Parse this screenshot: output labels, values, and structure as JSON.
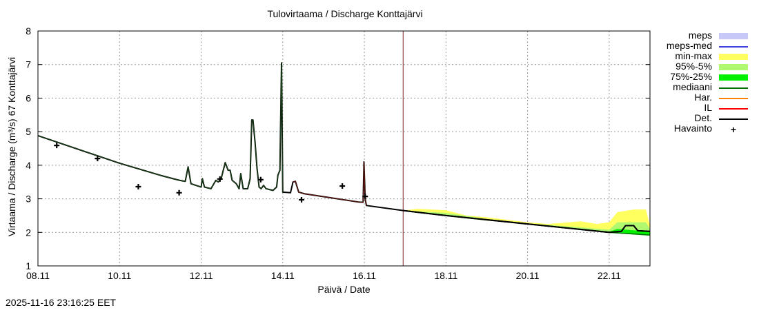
{
  "chart_data": {
    "type": "line",
    "title": "Tulovirtaama / Discharge  Konttajärvi",
    "xlabel": "Päivä / Date",
    "ylabel": "Virtaama / Discharge (m³/s)  67 Konttajärvi",
    "ylim": [
      1,
      8
    ],
    "xlim_days_from_0811": [
      0,
      15
    ],
    "y_ticks": [
      "1",
      "2",
      "3",
      "4",
      "5",
      "6",
      "7",
      "8"
    ],
    "x_ticks": [
      "08.11",
      "10.11",
      "12.11",
      "14.11",
      "16.11",
      "18.11",
      "20.11",
      "22.11"
    ],
    "grid": true,
    "forecast_start_day": 8.95,
    "legend": [
      {
        "label": "meps",
        "color": "#c8c8f8",
        "kind": "band"
      },
      {
        "label": "meps-med",
        "color": "#4040e0",
        "kind": "line"
      },
      {
        "label": "min-max",
        "color": "#ffff60",
        "kind": "band"
      },
      {
        "label": "95%-5%",
        "color": "#b0f870",
        "kind": "band"
      },
      {
        "label": "75%-25%",
        "color": "#00f000",
        "kind": "band"
      },
      {
        "label": "mediaani",
        "color": "#007000",
        "kind": "line"
      },
      {
        "label": "Har.",
        "color": "#ff8000",
        "kind": "line"
      },
      {
        "label": "IL",
        "color": "#ff0000",
        "kind": "line"
      },
      {
        "label": "Det.",
        "color": "#000000",
        "kind": "line"
      },
      {
        "label": "Havainto",
        "color": "#000000",
        "kind": "marker"
      }
    ],
    "det": [
      [
        0,
        4.88
      ],
      [
        2,
        4.06
      ],
      [
        3,
        3.7
      ],
      [
        3.47,
        3.55
      ],
      [
        3.61,
        3.52
      ],
      [
        3.68,
        3.95
      ],
      [
        3.75,
        3.45
      ],
      [
        4.0,
        3.35
      ],
      [
        4.03,
        3.6
      ],
      [
        4.08,
        3.35
      ],
      [
        4.24,
        3.3
      ],
      [
        4.36,
        3.55
      ],
      [
        4.42,
        3.5
      ],
      [
        4.49,
        3.6
      ],
      [
        4.59,
        4.08
      ],
      [
        4.66,
        3.85
      ],
      [
        4.71,
        3.85
      ],
      [
        4.76,
        3.55
      ],
      [
        4.86,
        3.45
      ],
      [
        4.93,
        3.3
      ],
      [
        4.97,
        3.75
      ],
      [
        5.03,
        3.3
      ],
      [
        5.14,
        3.3
      ],
      [
        5.2,
        3.6
      ],
      [
        5.24,
        5.35
      ],
      [
        5.27,
        5.35
      ],
      [
        5.32,
        4.7
      ],
      [
        5.37,
        3.9
      ],
      [
        5.42,
        3.35
      ],
      [
        5.47,
        3.3
      ],
      [
        5.53,
        3.4
      ],
      [
        5.59,
        3.3
      ],
      [
        5.76,
        3.25
      ],
      [
        5.85,
        3.35
      ],
      [
        5.88,
        3.7
      ],
      [
        5.93,
        3.85
      ],
      [
        5.97,
        7.05
      ],
      [
        6.0,
        3.2
      ],
      [
        6.19,
        3.18
      ],
      [
        6.25,
        3.5
      ],
      [
        6.31,
        3.52
      ],
      [
        6.39,
        3.2
      ],
      [
        6.53,
        3.15
      ],
      [
        7.88,
        2.9
      ],
      [
        7.97,
        2.9
      ],
      [
        7.99,
        4.1
      ],
      [
        8.02,
        3.0
      ],
      [
        8.05,
        2.8
      ],
      [
        8.95,
        2.65
      ],
      [
        10,
        2.5
      ],
      [
        12,
        2.25
      ],
      [
        14,
        2.0
      ],
      [
        14.3,
        2.03
      ],
      [
        14.4,
        2.2
      ],
      [
        14.6,
        2.2
      ],
      [
        14.7,
        2.05
      ],
      [
        15,
        2.03
      ]
    ],
    "mediaani": [
      [
        8.95,
        2.65
      ],
      [
        10,
        2.5
      ],
      [
        12,
        2.25
      ],
      [
        14,
        2.0
      ],
      [
        15,
        1.92
      ]
    ],
    "min_max": [
      [
        8.95,
        2.65,
        2.65
      ],
      [
        9.3,
        2.6,
        2.7
      ],
      [
        10,
        2.48,
        2.66
      ],
      [
        10.5,
        2.42,
        2.5
      ],
      [
        11,
        2.35,
        2.45
      ],
      [
        12,
        2.25,
        2.3
      ],
      [
        12.5,
        2.18,
        2.25
      ],
      [
        13.3,
        2.1,
        2.33
      ],
      [
        13.7,
        2.05,
        2.25
      ],
      [
        14.0,
        2.0,
        2.3
      ],
      [
        14.2,
        1.98,
        2.6
      ],
      [
        14.6,
        1.97,
        2.68
      ],
      [
        14.9,
        1.95,
        2.68
      ],
      [
        15,
        1.93,
        2.2
      ]
    ],
    "p95_5": [
      [
        8.95,
        2.65,
        2.65
      ],
      [
        10,
        2.48,
        2.58
      ],
      [
        11,
        2.35,
        2.4
      ],
      [
        12,
        2.25,
        2.27
      ],
      [
        14,
        2.0,
        2.08
      ],
      [
        14.2,
        1.98,
        2.3
      ],
      [
        14.9,
        1.94,
        2.3
      ],
      [
        15,
        1.92,
        2.1
      ]
    ],
    "p75_25": [
      [
        8.95,
        2.65,
        2.65
      ],
      [
        12,
        2.24,
        2.26
      ],
      [
        14,
        1.98,
        2.02
      ],
      [
        14.2,
        1.97,
        2.1
      ],
      [
        15,
        1.9,
        2.02
      ]
    ],
    "havainto": [
      [
        0.46,
        4.59
      ],
      [
        1.46,
        4.2
      ],
      [
        2.46,
        3.36
      ],
      [
        3.46,
        3.18
      ],
      [
        4.46,
        3.59
      ],
      [
        5.46,
        3.57
      ],
      [
        6.46,
        2.97
      ],
      [
        7.46,
        3.38
      ],
      [
        8.02,
        3.07
      ]
    ]
  },
  "timestamp": "2025-11-16 23:16:25 EET"
}
